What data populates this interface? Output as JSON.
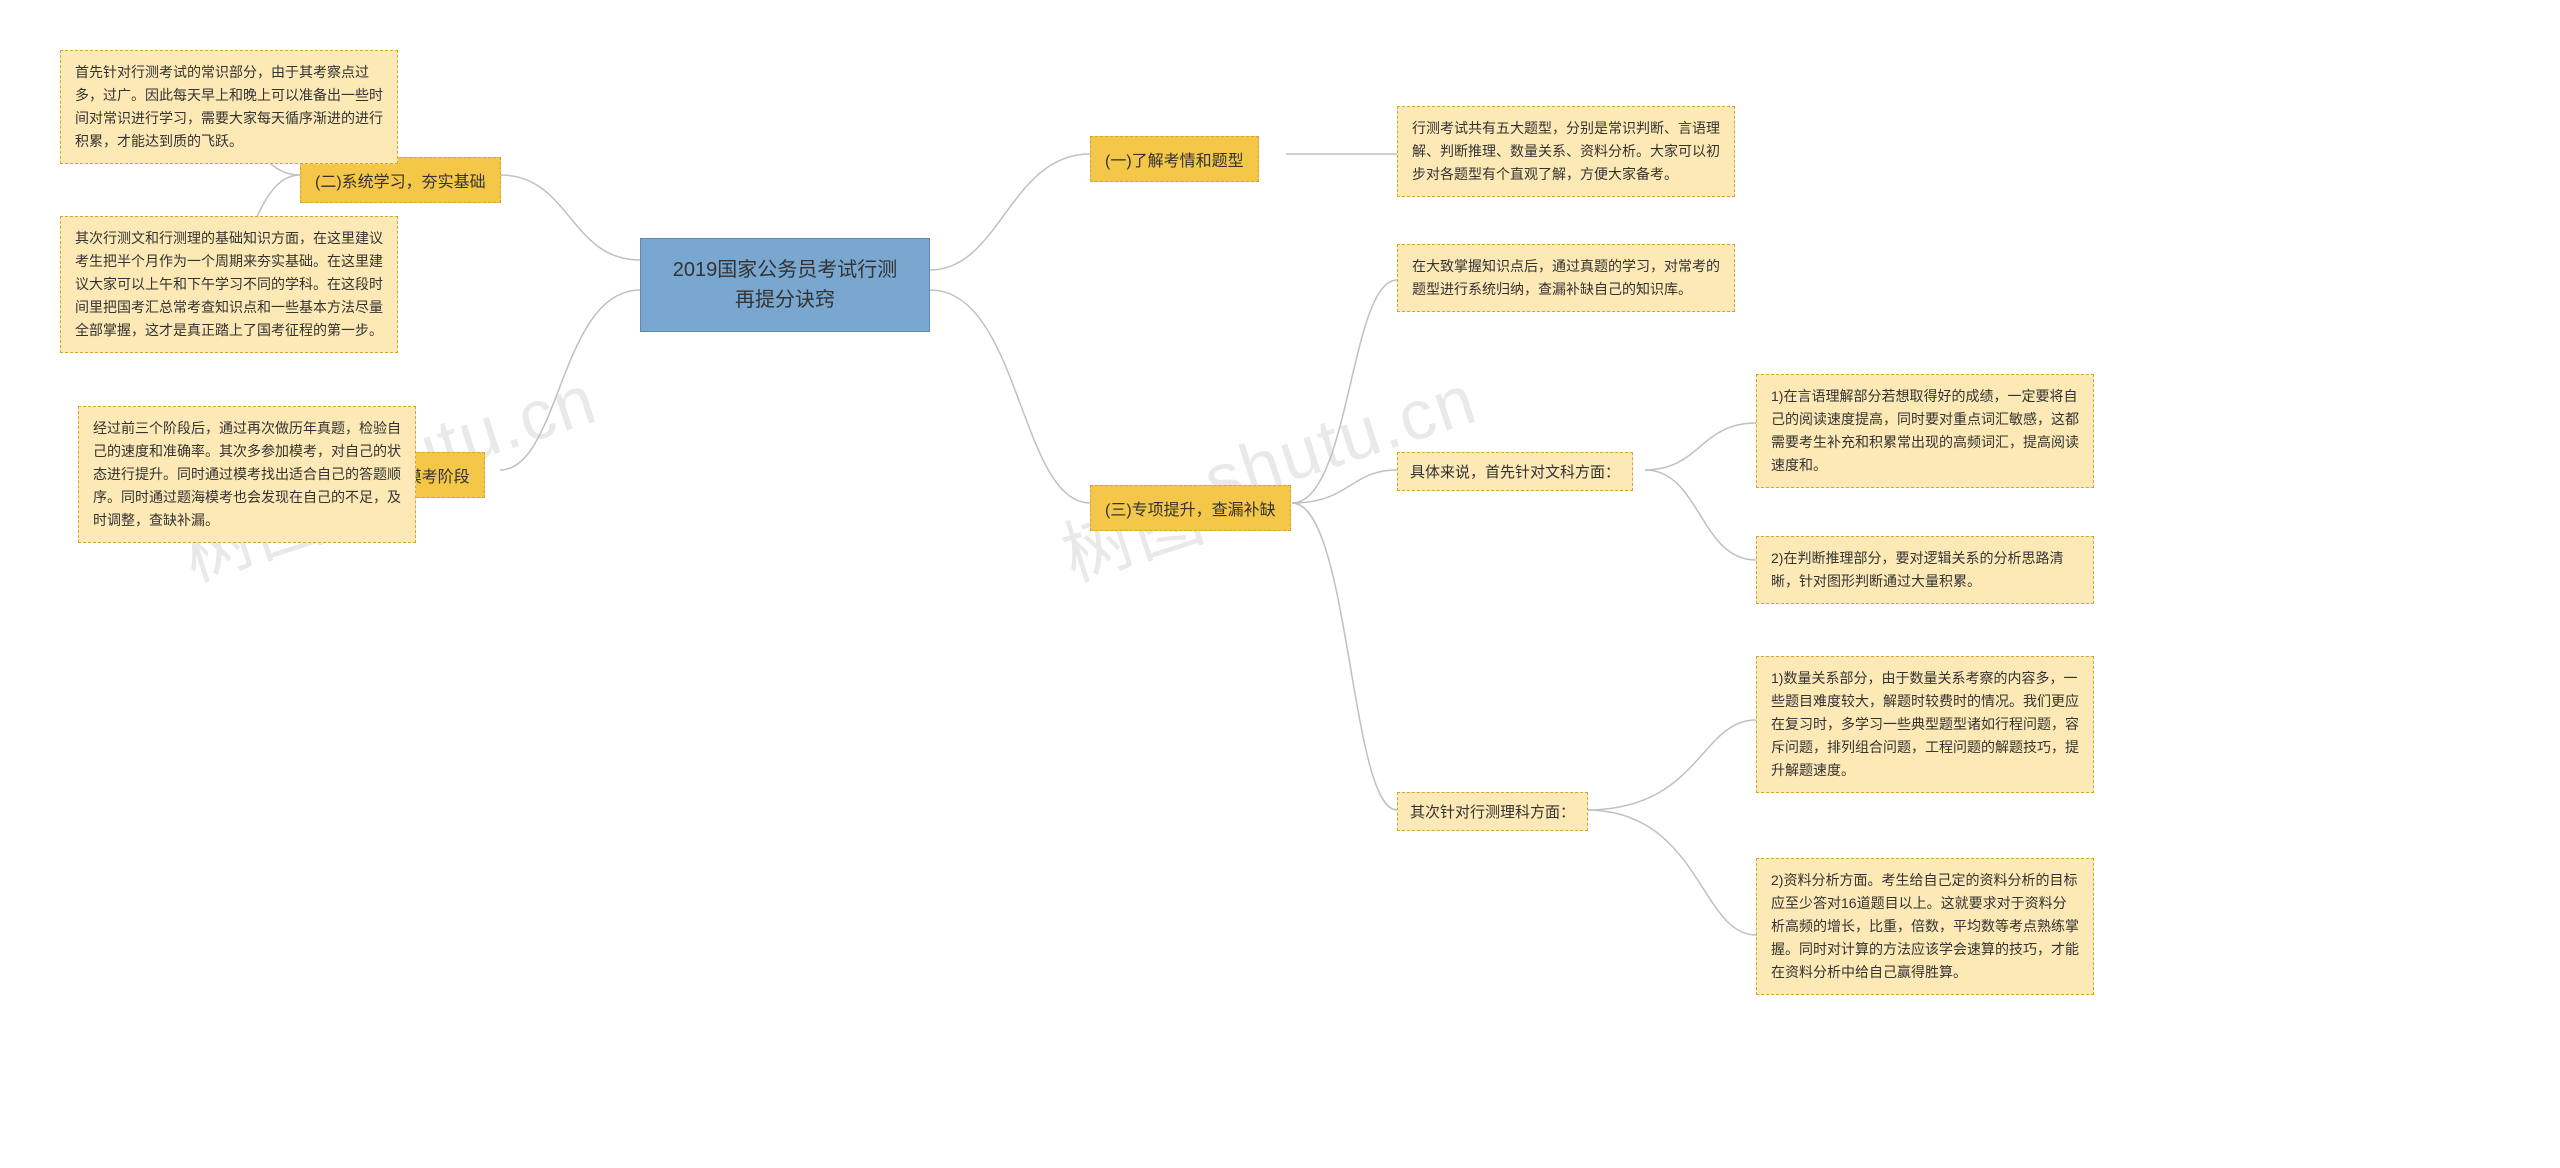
{
  "root": {
    "title": "2019国家公务员考试行测\n再提分诀窍"
  },
  "branches": {
    "b1": {
      "label": "(一)了解考情和题型"
    },
    "b2": {
      "label": "(二)系统学习，夯实基础"
    },
    "b3": {
      "label": "(三)专项提升，查漏补缺"
    },
    "b4": {
      "label": "(四)题海，模考阶段"
    }
  },
  "subs": {
    "s3a": {
      "label": "具体来说，首先针对文科方面："
    },
    "s3b": {
      "label": "其次针对行测理科方面："
    }
  },
  "leaves": {
    "l1": "行测考试共有五大题型，分别是常识判断、言语理解、判断推理、数量关系、资料分析。大家可以初步对各题型有个直观了解，方便大家备考。",
    "l2a": "首先针对行测考试的常识部分，由于其考察点过多，过广。因此每天早上和晚上可以准备出一些时间对常识进行学习，需要大家每天循序渐进的进行积累，才能达到质的飞跃。",
    "l2b": "其次行测文和行测理的基础知识方面，在这里建议考生把半个月作为一个周期来夯实基础。在这里建议大家可以上午和下午学习不同的学科。在这段时间里把国考汇总常考查知识点和一些基本方法尽量全部掌握，这才是真正踏上了国考征程的第一步。",
    "l3": "在大致掌握知识点后，通过真题的学习，对常考的题型进行系统归纳，查漏补缺自己的知识库。",
    "l3a1": "1)在言语理解部分若想取得好的成绩，一定要将自己的阅读速度提高，同时要对重点词汇敏感，这都需要考生补充和积累常出现的高频词汇，提高阅读速度和。",
    "l3a2": "2)在判断推理部分，要对逻辑关系的分析思路清晰，针对图形判断通过大量积累。",
    "l3b1": "1)数量关系部分，由于数量关系考察的内容多，一些题目难度较大，解题时较费时的情况。我们更应在复习时，多学习一些典型题型诸如行程问题，容斥问题，排列组合问题，工程问题的解题技巧，提升解题速度。",
    "l3b2": "2)资料分析方面。考生给自己定的资料分析的目标应至少答对16道题目以上。这就要求对于资料分析高频的增长，比重，倍数，平均数等考点熟练掌握。同时对计算的方法应该学会速算的技巧，才能在资料分析中给自己赢得胜算。",
    "l4": "经过前三个阶段后，通过再次做历年真题，检验自己的速度和准确率。其次多参加模考，对自己的状态进行提升。同时通过模考找出适合自己的答题顺序。同时通过题海模考也会发现在自己的不足，及时调整，查缺补漏。"
  },
  "watermarks": {
    "w1": "shutu.cn",
    "w2": "shutu.cn",
    "w3": "树图",
    "w4": "树图"
  },
  "style": {
    "root_bg": "#7aa7cf",
    "branch_bg": "#f5c748",
    "leaf_bg": "#fce9b6",
    "border_color": "#d4a43c",
    "connector_color": "#c0c0c0",
    "background": "#ffffff"
  }
}
